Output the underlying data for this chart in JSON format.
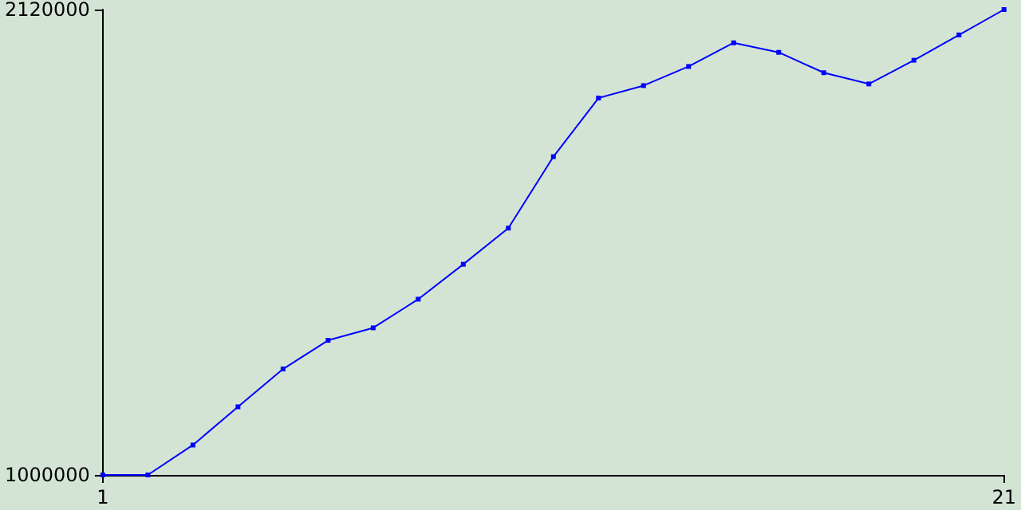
{
  "chart_data": {
    "type": "line",
    "x": [
      1,
      2,
      3,
      4,
      5,
      6,
      7,
      8,
      9,
      10,
      11,
      12,
      13,
      14,
      15,
      16,
      17,
      18,
      19,
      20,
      21
    ],
    "series": [
      {
        "color": "#0000ff",
        "values": [
          1000000,
          1000000,
          1072000,
          1164000,
          1255000,
          1324000,
          1354000,
          1423000,
          1507000,
          1594000,
          1766000,
          1907000,
          1937000,
          1983000,
          2040000,
          2017000,
          1968000,
          1941000,
          1998000,
          2059000,
          2120000
        ]
      }
    ],
    "xlim": [
      1,
      21
    ],
    "xticks": [
      1,
      21
    ],
    "ylim": [
      1000000,
      2120000
    ],
    "yticks": [
      1000000,
      2120000
    ],
    "grid": false,
    "marker": "square",
    "line_style": "solid"
  }
}
